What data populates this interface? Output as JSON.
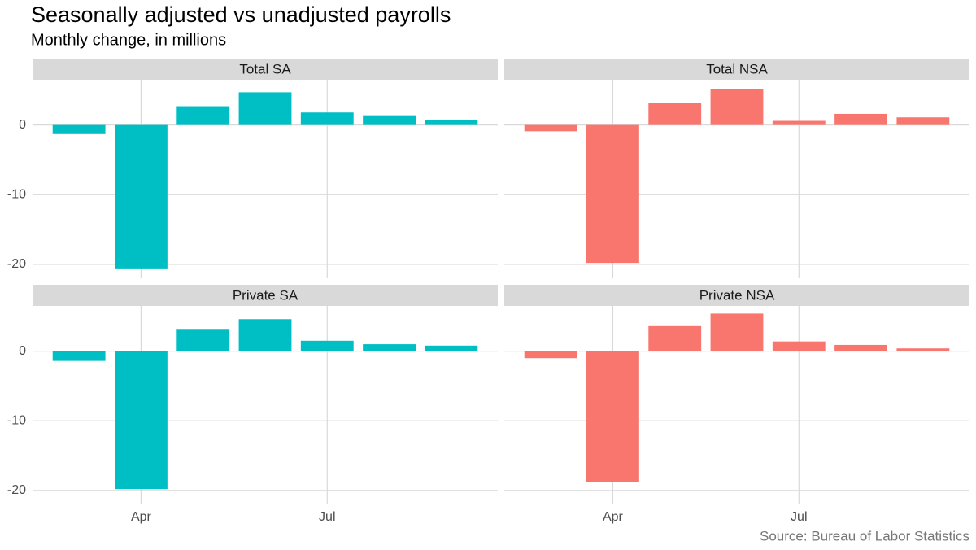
{
  "title": "Seasonally adjusted vs unadjusted payrolls",
  "subtitle": "Monthly change, in millions",
  "caption": "Source: Bureau of Labor Statistics",
  "chart_data": [
    {
      "type": "bar",
      "title": "Total SA",
      "categories": [
        null,
        "Apr",
        null,
        null,
        "Jul",
        null,
        null
      ],
      "values": [
        -1.3,
        -20.7,
        2.7,
        4.7,
        1.8,
        1.4,
        0.7
      ],
      "color": "#00BFC4",
      "ylim": [
        -22,
        6.5
      ],
      "yticks": [
        -20,
        -10,
        0
      ],
      "grid": true
    },
    {
      "type": "bar",
      "title": "Total NSA",
      "categories": [
        null,
        "Apr",
        null,
        null,
        "Jul",
        null,
        null
      ],
      "values": [
        -0.9,
        -19.8,
        3.2,
        5.1,
        0.6,
        1.6,
        1.1
      ],
      "color": "#F8766D",
      "ylim": [
        -22,
        6.5
      ],
      "yticks": [
        -20,
        -10,
        0
      ],
      "grid": true
    },
    {
      "type": "bar",
      "title": "Private SA",
      "categories": [
        null,
        "Apr",
        null,
        null,
        "Jul",
        null,
        null
      ],
      "values": [
        -1.4,
        -19.8,
        3.2,
        4.6,
        1.5,
        1.0,
        0.8
      ],
      "color": "#00BFC4",
      "ylim": [
        -22,
        6.5
      ],
      "yticks": [
        -20,
        -10,
        0
      ],
      "grid": true
    },
    {
      "type": "bar",
      "title": "Private NSA",
      "categories": [
        null,
        "Apr",
        null,
        null,
        "Jul",
        null,
        null
      ],
      "values": [
        -1.0,
        -18.8,
        3.6,
        5.4,
        1.4,
        0.9,
        0.4
      ],
      "color": "#F8766D",
      "ylim": [
        -22,
        6.5
      ],
      "yticks": [
        -20,
        -10,
        0
      ],
      "grid": true
    }
  ]
}
